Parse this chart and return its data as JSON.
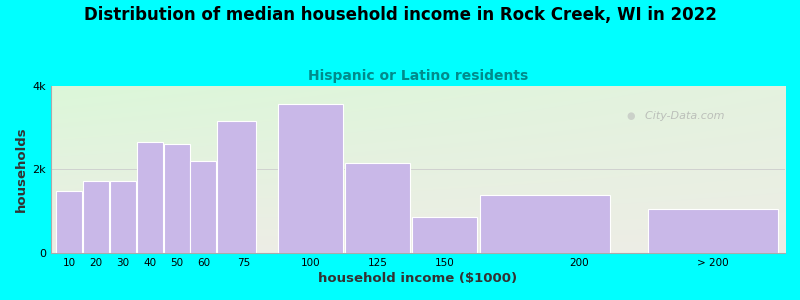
{
  "title": "Distribution of median household income in Rock Creek, WI in 2022",
  "subtitle": "Hispanic or Latino residents",
  "xlabel": "household income ($1000)",
  "ylabel": "households",
  "bg_outer": "#00FFFF",
  "bar_color": "#c9b8e8",
  "subtitle_color": "#008B8B",
  "watermark": "  City-Data.com",
  "ytick_labels": [
    "0",
    "2k",
    "4k"
  ],
  "ylim": [
    0,
    4000
  ],
  "bar_data": [
    [
      5,
      10,
      1480
    ],
    [
      15,
      10,
      1720
    ],
    [
      25,
      10,
      1720
    ],
    [
      35,
      10,
      2650
    ],
    [
      45,
      10,
      2600
    ],
    [
      55,
      10,
      2200
    ],
    [
      65,
      15,
      3150
    ],
    [
      87.5,
      25,
      3550
    ],
    [
      112.5,
      25,
      2150
    ],
    [
      137.5,
      25,
      850
    ],
    [
      162.5,
      50,
      1380
    ],
    [
      225,
      50,
      1050
    ]
  ],
  "xtick_positions": [
    10,
    20,
    30,
    40,
    50,
    60,
    75,
    100,
    125,
    150,
    200,
    250
  ],
  "xtick_labels": [
    "10",
    "20",
    "30",
    "40",
    "50",
    "60",
    "75",
    "100",
    "125",
    "150",
    "200",
    "> 200"
  ],
  "xlim": [
    3,
    277
  ]
}
